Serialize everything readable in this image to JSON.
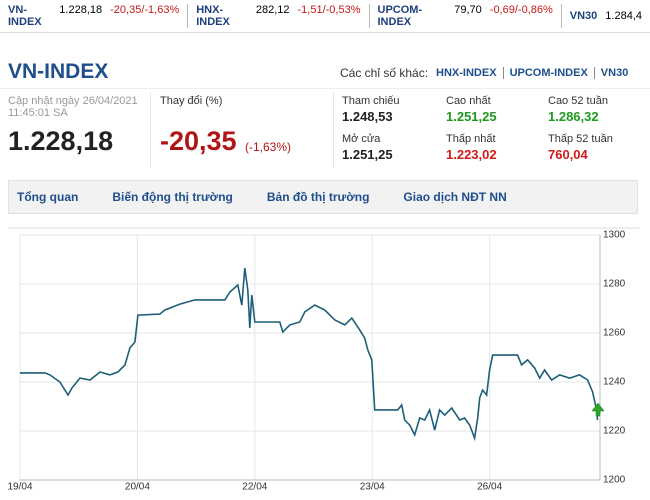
{
  "ticker": [
    {
      "name": "VN-INDEX",
      "value": "1.228,18",
      "change": "-20,35/-1,63%"
    },
    {
      "name": "HNX-INDEX",
      "value": "282,12",
      "change": "-1,51/-0,53%"
    },
    {
      "name": "UPCOM-INDEX",
      "value": "79,70",
      "change": "-0,69/-0,86%"
    },
    {
      "name": "VN30",
      "value": "1.284,4"
    }
  ],
  "header": {
    "title": "VN-INDEX",
    "other_label": "Các chỉ số khác:",
    "links": [
      "HNX-INDEX",
      "UPCOM-INDEX",
      "VN30"
    ]
  },
  "summary": {
    "updated": "Cập nhật ngày 26/04/2021",
    "time": "11:45:01 SA",
    "price": "1.228,18",
    "change_label": "Thay đổi (%)",
    "change": "-20,35",
    "change_pct": "(-1,63%)"
  },
  "stats": [
    {
      "label": "Tham chiếu",
      "value": "1.248,53",
      "color": "#222222"
    },
    {
      "label": "Cao nhất",
      "value": "1.251,25",
      "color": "#1e9a1e"
    },
    {
      "label": "Cao 52 tuần",
      "value": "1.286,32",
      "color": "#1e9a1e"
    },
    {
      "label": "Mở cửa",
      "value": "1.251,25",
      "color": "#222222"
    },
    {
      "label": "Thấp nhất",
      "value": "1.223,02",
      "color": "#d11a1a"
    },
    {
      "label": "Thấp 52 tuần",
      "value": "760,04",
      "color": "#d11a1a"
    }
  ],
  "tabs": [
    "Tổng quan",
    "Biến động thị trường",
    "Bản đồ thị trường",
    "Giao dịch NĐT NN"
  ],
  "chart_data": {
    "type": "line",
    "x": [
      0,
      2.13,
      2.55,
      3.4,
      4.09,
      4.43,
      5.11,
      5.96,
      6.81,
      7.66,
      8.34,
      8.94,
      9.36,
      9.79,
      10.04,
      11.91,
      12.34,
      13.62,
      14.89,
      17.45,
      17.87,
      18.55,
      18.89,
      19.15,
      19.4,
      19.57,
      19.74,
      20.0,
      21.28,
      22.13,
      22.38,
      22.98,
      23.83,
      24.26,
      25.11,
      25.96,
      26.81,
      27.66,
      28.26,
      28.94,
      29.36,
      29.62,
      29.96,
      30.21,
      32.17,
      32.51,
      32.77,
      33.19,
      33.62,
      34.04,
      34.47,
      34.89,
      35.32,
      35.74,
      36.17,
      36.77,
      37.45,
      37.87,
      38.3,
      38.72,
      38.98,
      39.15,
      39.4,
      39.74,
      40.0,
      40.26,
      42.38,
      42.72,
      43.23,
      43.83,
      44.26,
      44.68,
      45.28,
      45.96,
      46.81,
      47.66,
      48.34,
      48.77,
      49.11,
      49.19
    ],
    "series": [
      {
        "color": "#1d5f78",
        "values": [
          1243.7,
          1243.7,
          1242.9,
          1240.0,
          1234.7,
          1237.6,
          1241.6,
          1240.8,
          1244.1,
          1242.9,
          1244.1,
          1247.0,
          1253.9,
          1256.3,
          1267.3,
          1267.7,
          1269.4,
          1271.8,
          1273.5,
          1273.5,
          1276.7,
          1279.6,
          1271.4,
          1286.5,
          1277.6,
          1262.0,
          1275.5,
          1264.5,
          1264.5,
          1264.5,
          1260.4,
          1263.3,
          1264.5,
          1268.6,
          1271.4,
          1269.4,
          1265.3,
          1263.3,
          1266.1,
          1261.2,
          1257.9,
          1253.1,
          1249.0,
          1228.6,
          1228.6,
          1230.6,
          1224.5,
          1222.4,
          1218.4,
          1225.3,
          1224.5,
          1228.6,
          1220.4,
          1228.6,
          1226.5,
          1229.4,
          1224.5,
          1225.3,
          1222.4,
          1217.1,
          1225.3,
          1233.5,
          1236.7,
          1234.7,
          1244.9,
          1251.0,
          1251.0,
          1247.0,
          1249.0,
          1245.7,
          1241.6,
          1244.9,
          1240.8,
          1242.9,
          1241.6,
          1242.9,
          1240.8,
          1235.9,
          1228.6,
          1224.5
        ]
      }
    ],
    "xlim": [
      0,
      49.4
    ],
    "ylim": [
      1200,
      1300
    ],
    "xticks": [
      {
        "value": 0,
        "label": "19/04"
      },
      {
        "value": 10,
        "label": "20/04"
      },
      {
        "value": 20,
        "label": "22/04"
      },
      {
        "value": 30,
        "label": "23/04"
      },
      {
        "value": 40,
        "label": "26/04"
      }
    ],
    "yticks": [
      1200,
      1220,
      1240,
      1260,
      1280,
      1300
    ],
    "grid": true
  }
}
